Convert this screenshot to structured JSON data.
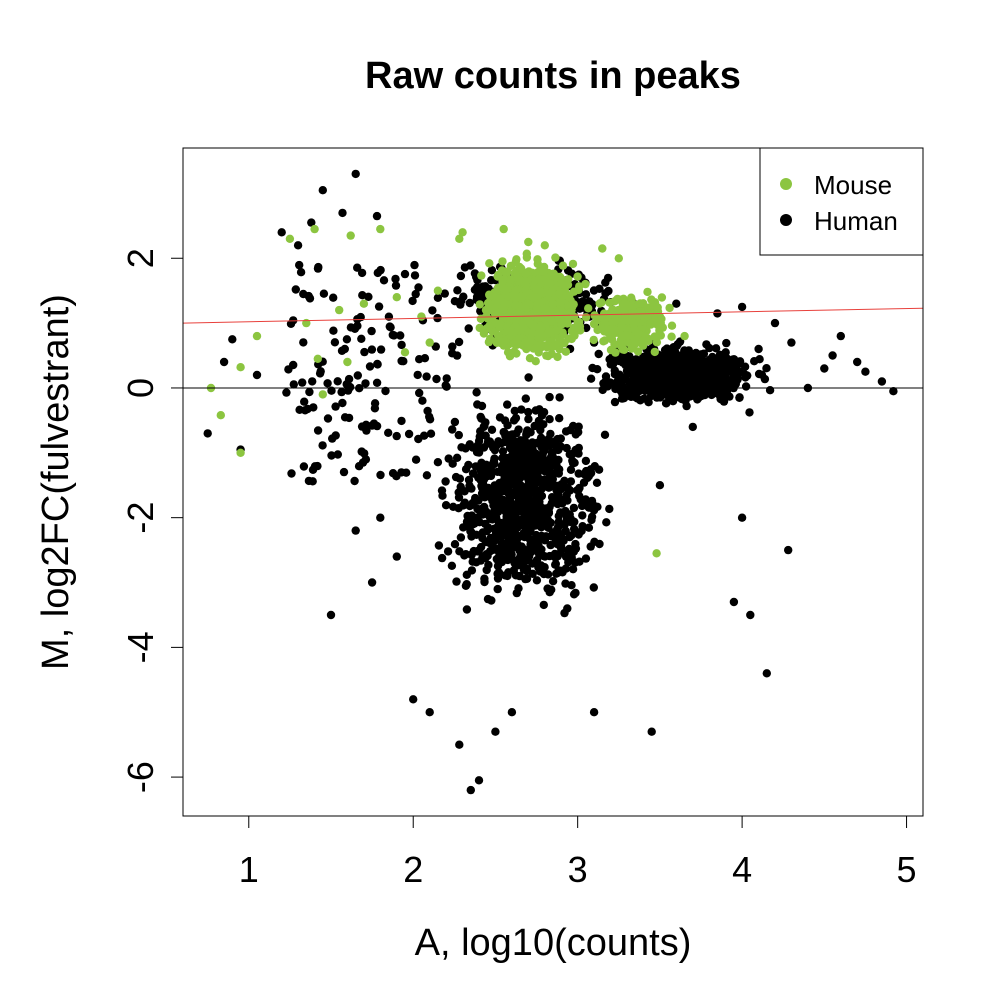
{
  "chart_data": {
    "type": "scatter",
    "title": "Raw counts in peaks",
    "xlabel": "A, log10(counts)",
    "ylabel": "M, log2FC(fulvestrant)",
    "xlim": [
      0.6,
      5.1
    ],
    "ylim": [
      -6.6,
      3.7
    ],
    "x_ticks": [
      1,
      2,
      3,
      4,
      5
    ],
    "y_ticks": [
      -6,
      -4,
      -2,
      0,
      2
    ],
    "x_tick_labels": [
      "1",
      "2",
      "3",
      "4",
      "5"
    ],
    "y_tick_labels": [
      "-6",
      "-4",
      "-2",
      "0",
      "2"
    ],
    "grid": false,
    "legend_position": "top-right",
    "colors": {
      "Mouse": "#8cc540",
      "Human": "#000000",
      "fit_line": "#e8413c",
      "zero_line": "#000000"
    },
    "legend": [
      {
        "label": "Mouse",
        "color": "#8cc540"
      },
      {
        "label": "Human",
        "color": "#000000"
      }
    ],
    "reference_lines": [
      {
        "kind": "horizontal",
        "y": 0,
        "color": "#000000"
      },
      {
        "kind": "trend",
        "from": [
          0.6,
          1.0
        ],
        "to": [
          5.1,
          1.23
        ],
        "color": "#e8413c"
      }
    ],
    "series": [
      {
        "name": "Human",
        "color": "#000000",
        "clouds": [
          {
            "x_range": [
              2.05,
              3.3
            ],
            "y_range": [
              -3.8,
              0.3
            ],
            "density": "dense"
          },
          {
            "x_range": [
              3.0,
              4.2
            ],
            "y_range": [
              -0.4,
              0.8
            ],
            "density": "dense"
          },
          {
            "x_range": [
              1.2,
              2.3
            ],
            "y_range": [
              -1.5,
              2.0
            ],
            "density": "sparse"
          },
          {
            "x_range": [
              2.0,
              3.5
            ],
            "y_range": [
              0.5,
              2.2
            ],
            "density": "medium"
          }
        ],
        "points": [
          [
            1.65,
            3.3
          ],
          [
            1.45,
            3.05
          ],
          [
            1.57,
            2.7
          ],
          [
            1.78,
            2.65
          ],
          [
            1.38,
            2.55
          ],
          [
            1.2,
            2.4
          ],
          [
            1.3,
            2.2
          ],
          [
            0.85,
            0.4
          ],
          [
            0.75,
            -0.7
          ],
          [
            0.9,
            0.75
          ],
          [
            0.95,
            -0.95
          ],
          [
            1.05,
            0.2
          ],
          [
            1.8,
            -2.0
          ],
          [
            1.65,
            -2.2
          ],
          [
            1.5,
            -3.5
          ],
          [
            1.75,
            -3.0
          ],
          [
            1.9,
            -2.6
          ],
          [
            2.4,
            -6.05
          ],
          [
            2.35,
            -6.2
          ],
          [
            2.28,
            -5.5
          ],
          [
            2.1,
            -5.0
          ],
          [
            2.0,
            -4.8
          ],
          [
            2.5,
            -5.3
          ],
          [
            2.6,
            -5.0
          ],
          [
            3.1,
            -5.0
          ],
          [
            3.45,
            -5.3
          ],
          [
            3.95,
            -3.3
          ],
          [
            4.0,
            -2.0
          ],
          [
            4.28,
            -2.5
          ],
          [
            4.15,
            -4.4
          ],
          [
            4.05,
            -3.5
          ],
          [
            3.5,
            -1.5
          ],
          [
            3.7,
            -0.6
          ],
          [
            3.55,
            0.35
          ],
          [
            3.1,
            0.7
          ],
          [
            3.9,
            0.55
          ],
          [
            4.1,
            0.6
          ],
          [
            4.3,
            0.7
          ],
          [
            4.5,
            0.3
          ],
          [
            4.6,
            0.8
          ],
          [
            4.7,
            0.4
          ],
          [
            4.92,
            -0.05
          ],
          [
            4.85,
            0.1
          ],
          [
            4.75,
            0.25
          ],
          [
            4.4,
            0.0
          ],
          [
            4.2,
            1.0
          ],
          [
            4.0,
            1.25
          ],
          [
            3.85,
            1.15
          ],
          [
            3.6,
            1.3
          ],
          [
            4.55,
            0.5
          ]
        ]
      },
      {
        "name": "Mouse",
        "color": "#8cc540",
        "clouds": [
          {
            "x_range": [
              2.35,
              3.1
            ],
            "y_range": [
              0.25,
              2.2
            ],
            "density": "dense"
          },
          {
            "x_range": [
              3.0,
              3.65
            ],
            "y_range": [
              0.4,
              1.6
            ],
            "density": "medium"
          }
        ],
        "points": [
          [
            0.77,
            0.0
          ],
          [
            0.83,
            -0.42
          ],
          [
            0.95,
            0.32
          ],
          [
            0.95,
            -1.0
          ],
          [
            1.05,
            0.8
          ],
          [
            1.25,
            2.3
          ],
          [
            1.4,
            2.45
          ],
          [
            1.62,
            2.35
          ],
          [
            1.8,
            2.45
          ],
          [
            1.45,
            -0.1
          ],
          [
            1.6,
            0.4
          ],
          [
            1.42,
            0.45
          ],
          [
            1.55,
            1.2
          ],
          [
            1.7,
            1.3
          ],
          [
            1.35,
            1.0
          ],
          [
            1.9,
            1.4
          ],
          [
            1.95,
            0.55
          ],
          [
            2.1,
            0.7
          ],
          [
            2.3,
            2.4
          ],
          [
            2.55,
            2.45
          ],
          [
            2.28,
            2.3
          ],
          [
            3.15,
            2.15
          ],
          [
            3.25,
            2.0
          ],
          [
            3.5,
            1.1
          ],
          [
            3.65,
            0.8
          ],
          [
            3.48,
            -2.55
          ],
          [
            2.7,
            2.25
          ],
          [
            2.8,
            2.2
          ],
          [
            2.15,
            1.5
          ],
          [
            2.05,
            1.1
          ]
        ]
      }
    ]
  }
}
